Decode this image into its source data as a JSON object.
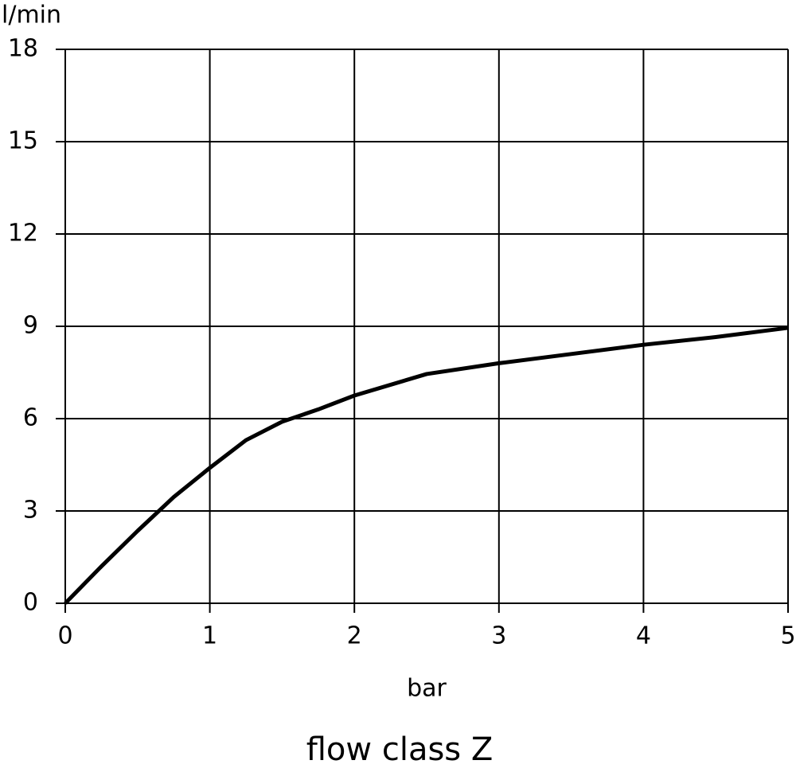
{
  "chart_data": {
    "type": "line",
    "caption": "flow class Z",
    "x_label": "bar",
    "y_label": "l/min",
    "x": [
      0,
      0.25,
      0.5,
      0.75,
      1,
      1.25,
      1.5,
      1.75,
      2,
      2.5,
      3,
      3.5,
      4,
      4.5,
      5
    ],
    "series": [
      {
        "name": "flow class Z",
        "color": "#000000",
        "values": [
          0,
          1.2,
          2.35,
          3.45,
          4.4,
          5.3,
          5.9,
          6.3,
          6.75,
          7.45,
          7.8,
          8.1,
          8.4,
          8.65,
          8.95
        ]
      }
    ],
    "xlim": [
      0,
      5
    ],
    "xticks": [
      0,
      1,
      2,
      3,
      4,
      5
    ],
    "ylim": [
      0,
      18
    ],
    "yticks": [
      0,
      3,
      6,
      9,
      12,
      15,
      18
    ],
    "grid": true
  }
}
